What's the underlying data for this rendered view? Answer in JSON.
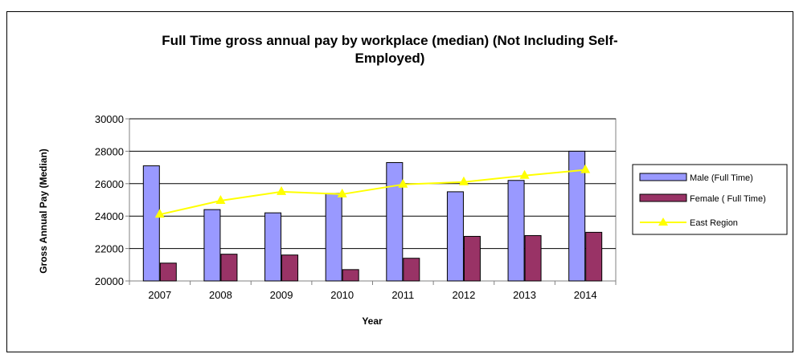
{
  "chart_data": {
    "type": "bar",
    "title_lines": [
      "Full Time gross annual pay by workplace (median) (Not Including Self-",
      "Employed)"
    ],
    "xlabel": "Year",
    "ylabel": "Gross Annual Pay (Median)",
    "categories": [
      "2007",
      "2008",
      "2009",
      "2010",
      "2011",
      "2012",
      "2013",
      "2014"
    ],
    "ylim": [
      20000,
      30000
    ],
    "yticks": [
      20000,
      22000,
      24000,
      26000,
      28000,
      30000
    ],
    "grid": true,
    "legend_position": "right",
    "series": [
      {
        "name": "Male (Full Time)",
        "kind": "bar",
        "color": "#9999ff",
        "values": [
          27100,
          24400,
          24200,
          25400,
          27300,
          25500,
          26200,
          28000
        ]
      },
      {
        "name": "Female ( Full Time)",
        "kind": "bar",
        "color": "#993366",
        "values": [
          21100,
          21650,
          21600,
          20700,
          21400,
          22750,
          22800,
          23000
        ]
      },
      {
        "name": "East Region",
        "kind": "line",
        "color": "#ffff00",
        "values": [
          24100,
          24950,
          25500,
          25350,
          25950,
          26100,
          26500,
          26850
        ]
      }
    ]
  }
}
